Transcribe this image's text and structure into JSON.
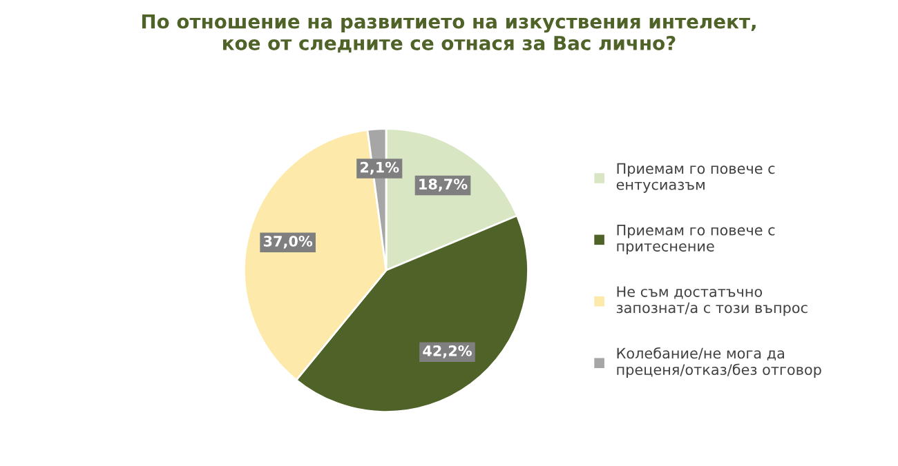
{
  "chart_data": {
    "type": "pie",
    "title": "По отношение на развитието на изкуствения интелект,\nкое от следните се отнася за Вас лично?",
    "categories": [
      "Приемам го повече с\nентусиазъм",
      "Приемам го повече с\nпритеснение",
      "Не съм достатъчно\nзапознат/а с този въпрос",
      "Колебание/не мога да\nпреценя/отказ/без отговор"
    ],
    "values": [
      18.7,
      42.2,
      37.0,
      2.1
    ],
    "value_labels": [
      "18,7%",
      "42,2%",
      "37,0%",
      "2,1%"
    ],
    "colors": [
      "#d8e6c3",
      "#4f6228",
      "#fde9a9",
      "#a6a6a6"
    ],
    "legend": "right"
  }
}
